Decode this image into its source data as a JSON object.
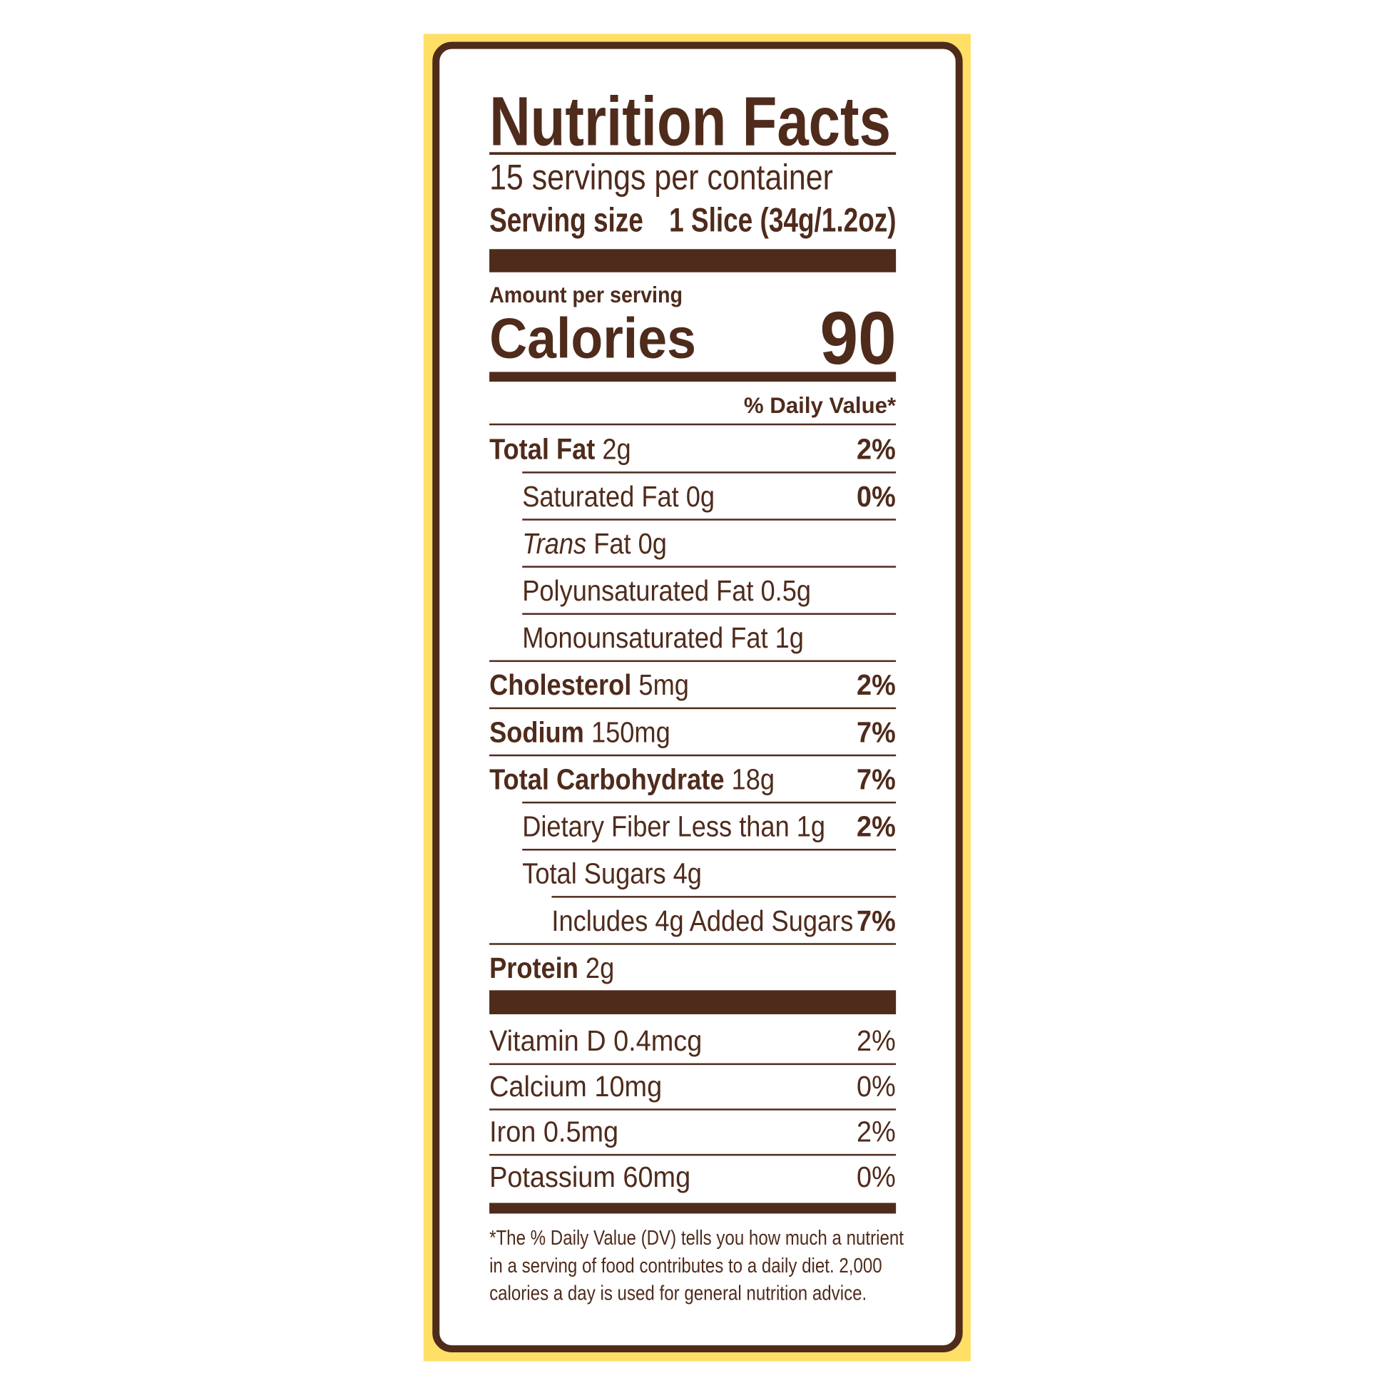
{
  "colors": {
    "brown": "#4f2b1c",
    "yellow": "#ffdf66"
  },
  "title": "Nutrition Facts",
  "servings": "15 servings per container",
  "serving_size_label": "Serving size",
  "serving_size_value": "1 Slice (34g/1.2oz)",
  "amount_per_serving": "Amount per serving",
  "calories_label": "Calories",
  "calories_value": "90",
  "dv_header": "% Daily Value*",
  "nutrients": [
    {
      "name": "Total Fat",
      "amount": "2g",
      "dv": "2%",
      "bold": true,
      "indent": 0
    },
    {
      "name": "Saturated Fat",
      "amount": "0g",
      "dv": "0%",
      "indent": 1
    },
    {
      "name": "Trans",
      "name_rest": "Fat",
      "amount": "0g",
      "dv": "",
      "indent": 1
    },
    {
      "name": "Polyunsaturated Fat",
      "amount": "0.5g",
      "dv": "",
      "indent": 1
    },
    {
      "name": "Monounsaturated Fat",
      "amount": "1g",
      "dv": "",
      "indent": 1
    },
    {
      "name": "Cholesterol",
      "amount": "5mg",
      "dv": "2%",
      "bold": true,
      "indent": 0
    },
    {
      "name": "Sodium",
      "amount": "150mg",
      "dv": "7%",
      "bold": true,
      "indent": 0
    },
    {
      "name": "Total Carbohydrate",
      "amount": "18g",
      "dv": "7%",
      "bold": true,
      "indent": 0
    },
    {
      "name": "Dietary Fiber",
      "amount": "Less than 1g",
      "dv": "2%",
      "indent": 1
    },
    {
      "name": "Total Sugars",
      "amount": "4g",
      "dv": "",
      "indent": 1
    },
    {
      "name": "Includes",
      "amount": "4g Added Sugars",
      "dv": "7%",
      "indent": 2
    },
    {
      "name": "Protein",
      "amount": "2g",
      "dv": "",
      "bold": true,
      "indent": 0
    }
  ],
  "vitamins": [
    {
      "name": "Vitamin D",
      "amount": "0.4mcg",
      "dv": "2%"
    },
    {
      "name": "Calcium",
      "amount": "10mg",
      "dv": "0%"
    },
    {
      "name": "Iron",
      "amount": "0.5mg",
      "dv": "2%"
    },
    {
      "name": "Potassium",
      "amount": "60mg",
      "dv": "0%"
    }
  ],
  "footnote": [
    "*The % Daily Value (DV) tells you how much a nutrient",
    "in a serving of food contributes to a daily diet. 2,000",
    "calories a day is used for general nutrition advice."
  ]
}
